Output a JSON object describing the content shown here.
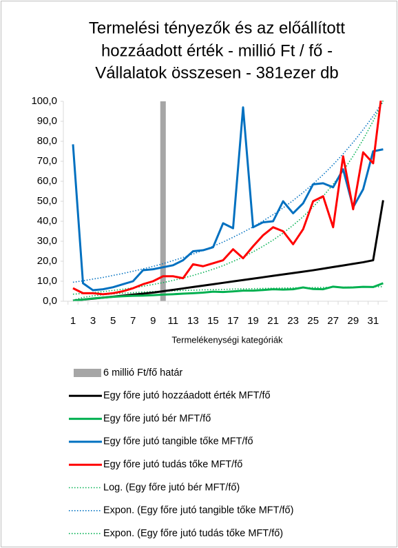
{
  "chart_data": {
    "type": "line",
    "title": [
      "Termelési tényezők és az előállított",
      "hozzáadott érték - millió Ft / fő  -",
      "Vállalatok összesen - 381ezer db"
    ],
    "x_label": "Termelékenységi kategóriák",
    "categories": [
      "1",
      null,
      "3",
      null,
      "5",
      null,
      "7",
      null,
      "9",
      null,
      "11",
      null,
      "13",
      null,
      "15",
      null,
      "17",
      null,
      "19",
      null,
      "21",
      null,
      "23",
      null,
      "25",
      null,
      "27",
      null,
      "29",
      null,
      "31",
      null
    ],
    "ylim": [
      0,
      100
    ],
    "yticks": [
      {
        "value": 0,
        "label": "0,0"
      },
      {
        "value": 10,
        "label": "10,0"
      },
      {
        "value": 20,
        "label": "20,0"
      },
      {
        "value": 30,
        "label": "30,0"
      },
      {
        "value": 40,
        "label": "40,0"
      },
      {
        "value": 50,
        "label": "50,0"
      },
      {
        "value": 60,
        "label": "60,0"
      },
      {
        "value": 70,
        "label": "70,0"
      },
      {
        "value": 80,
        "label": "80,0"
      },
      {
        "value": 90,
        "label": "90,0"
      },
      {
        "value": 100,
        "label": "100,0"
      }
    ],
    "grid": false,
    "legend": "bottom",
    "series": [
      {
        "name": "6 millió Ft/fő határ",
        "kind": "bar",
        "color": "#a6a6a6",
        "values": [
          null,
          null,
          null,
          null,
          null,
          null,
          null,
          null,
          null,
          100,
          null,
          null,
          null,
          null,
          null,
          null,
          null,
          null,
          null,
          null,
          null,
          null,
          null,
          null,
          null,
          null,
          null,
          null,
          null,
          null,
          null,
          null
        ]
      },
      {
        "name": "Egy főre jutó hozzáadott érték MFT/fő",
        "kind": "line",
        "color": "#000000",
        "values": [
          0.3,
          0.8,
          1.3,
          1.8,
          2.3,
          2.8,
          3.3,
          3.8,
          4.3,
          5.0,
          5.7,
          6.4,
          7.1,
          7.8,
          8.5,
          9.2,
          9.9,
          10.6,
          11.3,
          12.0,
          12.7,
          13.4,
          14.1,
          14.8,
          15.5,
          16.3,
          17.1,
          17.9,
          18.7,
          19.5,
          20.5,
          50.5
        ]
      },
      {
        "name": "Egy főre jutó bér MFT/fő",
        "kind": "line",
        "color": "#00b050",
        "values": [
          0.3,
          0.8,
          1.4,
          1.8,
          2.2,
          2.5,
          2.7,
          2.8,
          3.0,
          3.3,
          3.5,
          3.8,
          4.0,
          4.3,
          4.8,
          4.6,
          4.9,
          5.3,
          5.3,
          5.6,
          6.0,
          5.8,
          6.0,
          6.9,
          6.1,
          6.0,
          7.3,
          6.8,
          6.9,
          7.2,
          7.1,
          9.0
        ]
      },
      {
        "name": "Egy főre jutó tangible tőke MFT/fő",
        "kind": "line",
        "color": "#0070c0",
        "values": [
          78.5,
          9,
          5.5,
          6,
          7,
          8.5,
          10,
          15.5,
          16,
          17,
          18,
          20.5,
          25,
          25.5,
          27,
          39,
          36.5,
          97,
          37,
          39.5,
          40,
          50,
          44,
          49,
          58.5,
          59,
          57,
          66,
          47,
          56,
          75,
          76
        ]
      },
      {
        "name": "Egy főre jutó tudás tőke MFT/fő",
        "kind": "line",
        "color": "#ff0000",
        "values": [
          6.5,
          4,
          4,
          3.5,
          4,
          5,
          6.5,
          8.5,
          10,
          12.5,
          12.5,
          11.5,
          18.5,
          17.5,
          19,
          20.5,
          26,
          21.5,
          27.5,
          33,
          37,
          35,
          28.5,
          36,
          50,
          52.5,
          37,
          72.5,
          46,
          74.5,
          69,
          110
        ]
      },
      {
        "name": "Log. (Egy főre jutó bér MFT/fő)",
        "kind": "trend",
        "color": "#00b050",
        "values": [
          0.5,
          1.9,
          2.7,
          3.2,
          3.7,
          4.0,
          4.3,
          4.6,
          4.8,
          5.0,
          5.2,
          5.4,
          5.5,
          5.7,
          5.8,
          5.9,
          6.1,
          6.2,
          6.3,
          6.4,
          6.5,
          6.6,
          6.7,
          6.7,
          6.8,
          6.9,
          7.0,
          7.0,
          7.1,
          7.2,
          7.2,
          7.3
        ]
      },
      {
        "name": "Expon. (Egy főre jutó tangible tőke MFT/fő)",
        "kind": "trend",
        "color": "#0070c0",
        "values": [
          9.5,
          10.2,
          11.1,
          11.9,
          12.9,
          13.9,
          15.0,
          16.2,
          17.4,
          18.8,
          20.3,
          21.9,
          23.6,
          25.5,
          27.5,
          29.6,
          32.0,
          34.5,
          37.2,
          40.2,
          43.3,
          46.7,
          50.4,
          54.4,
          58.7,
          63.3,
          68.3,
          73.7,
          79.5,
          85.8,
          92.6,
          99.9
        ]
      },
      {
        "name": "Expon. (Egy főre jutó tudás tőke MFT/fő)",
        "kind": "trend",
        "color": "#00b050",
        "values": [
          3.5,
          3.9,
          4.3,
          4.8,
          5.4,
          6.0,
          6.7,
          7.5,
          8.4,
          9.3,
          10.4,
          11.6,
          12.9,
          14.4,
          16.0,
          17.8,
          19.9,
          22.1,
          24.7,
          27.5,
          30.6,
          34.1,
          38.0,
          42.3,
          47.2,
          52.5,
          58.5,
          65.2,
          72.6,
          80.9,
          90.1,
          100.4
        ]
      }
    ]
  }
}
